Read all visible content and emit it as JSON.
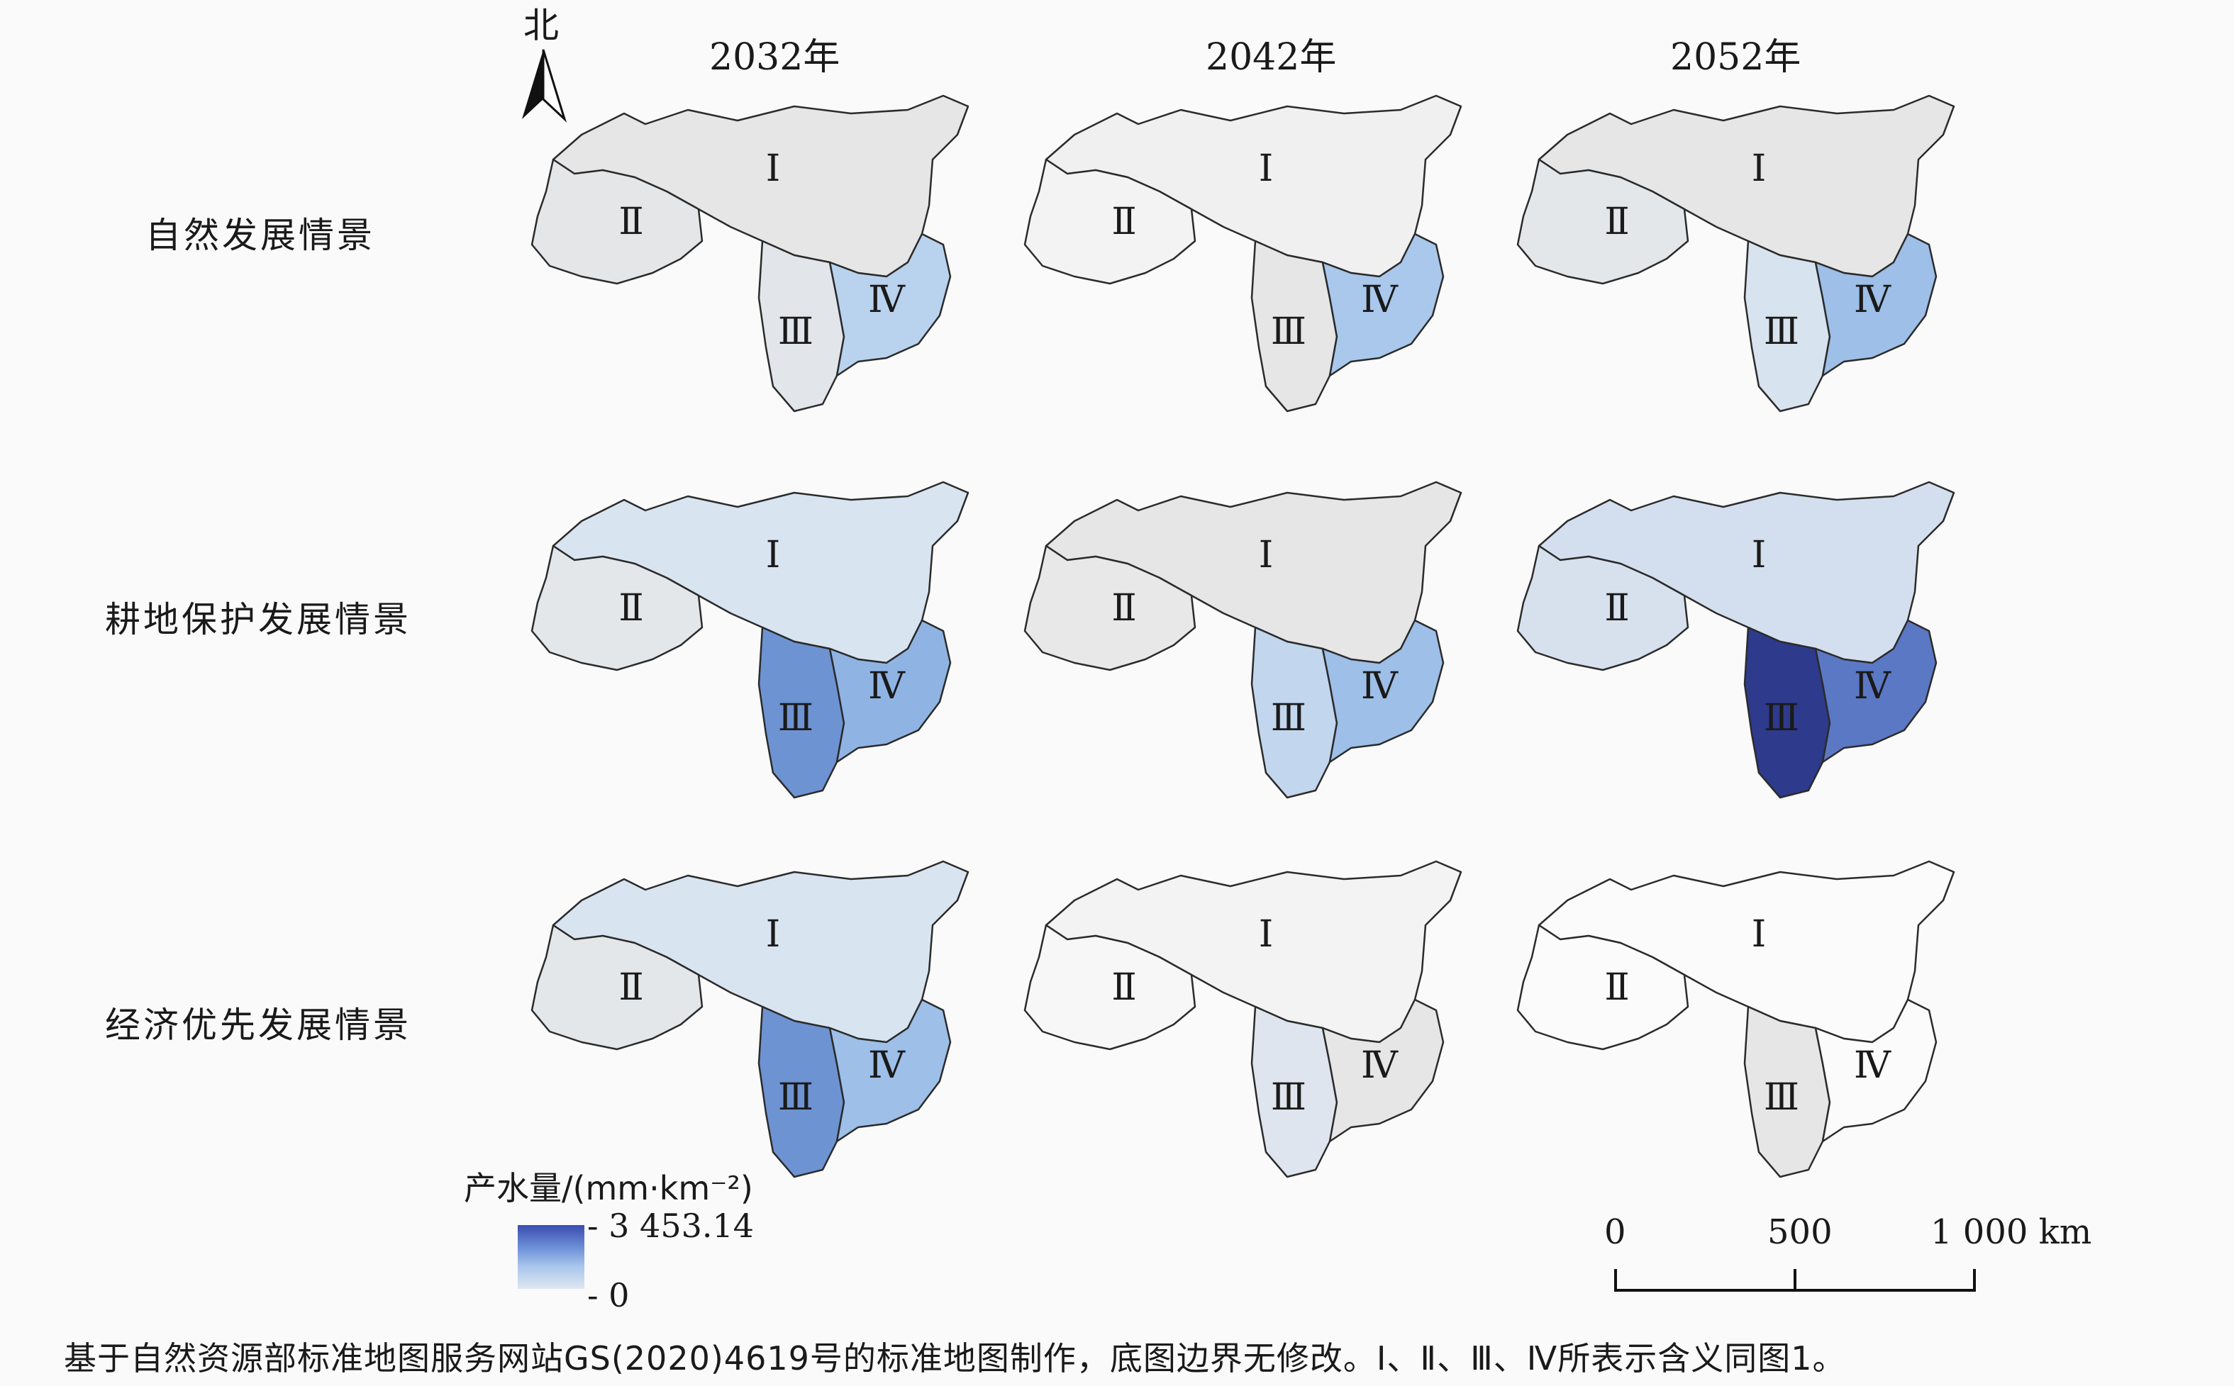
{
  "years": [
    "2032年",
    "2042年",
    "2052年"
  ],
  "scenarios": [
    "自然发展情景",
    "耕地保护发展情景",
    "经济优先发展情景"
  ],
  "north_label": "北",
  "region_labels": [
    "Ⅰ",
    "Ⅱ",
    "Ⅲ",
    "Ⅳ"
  ],
  "legend": {
    "title": "产水量/(mm·km⁻²)",
    "max": "3 453.14",
    "min": "0",
    "ramp": [
      "#3b4db0",
      "#6c8ed6",
      "#a9c6ec",
      "#dfe7f1"
    ]
  },
  "scale": {
    "ticks": [
      "0",
      "500",
      "1 000 km"
    ]
  },
  "note": "基于自然资源部标准地图服务网站GS(2020)4619号的标准地图制作，底图边界无修改。Ⅰ、Ⅱ、Ⅲ、Ⅳ所表示含义同图1。",
  "maps": [
    {
      "scenario": "自然发展情景",
      "year": "2032年",
      "fills": {
        "I": "#e6e6e6",
        "II": "#e4e6e8",
        "III": "#e2e5e9",
        "IV": "#b9d2ee"
      }
    },
    {
      "scenario": "自然发展情景",
      "year": "2042年",
      "fills": {
        "I": "#f0f0f0",
        "II": "#f3f3f3",
        "III": "#e6e6e6",
        "IV": "#a9c8ec"
      }
    },
    {
      "scenario": "自然发展情景",
      "year": "2052年",
      "fills": {
        "I": "#e6e6e6",
        "II": "#e4e7ea",
        "III": "#d7e3ef",
        "IV": "#9dbfe8"
      }
    },
    {
      "scenario": "耕地保护发展情景",
      "year": "2032年",
      "fills": {
        "I": "#d9e4f1",
        "II": "#e4e7ea",
        "III": "#6e93d2",
        "IV": "#8fb4e4"
      }
    },
    {
      "scenario": "耕地保护发展情景",
      "year": "2042年",
      "fills": {
        "I": "#e6e6e6",
        "II": "#e8e8e8",
        "III": "#c2d6ee",
        "IV": "#9dbfe8"
      }
    },
    {
      "scenario": "耕地保护发展情景",
      "year": "2052年",
      "fills": {
        "I": "#d3dfee",
        "II": "#d7e1ee",
        "III": "#2e3a8c",
        "IV": "#5a78c4"
      }
    },
    {
      "scenario": "经济优先发展情景",
      "year": "2032年",
      "fills": {
        "I": "#d9e4f1",
        "II": "#e4e7ea",
        "III": "#6e93d2",
        "IV": "#9dbfe8"
      }
    },
    {
      "scenario": "经济优先发展情景",
      "year": "2042年",
      "fills": {
        "I": "#f3f3f3",
        "II": "#f7f7f7",
        "III": "#dfe5ee",
        "IV": "#e6e6e6"
      }
    },
    {
      "scenario": "经济优先发展情景",
      "year": "2052年",
      "fills": {
        "I": "#fbfbfb",
        "II": "#fbfbfb",
        "III": "#e6e6e6",
        "IV": "#fbfbfb"
      }
    }
  ]
}
